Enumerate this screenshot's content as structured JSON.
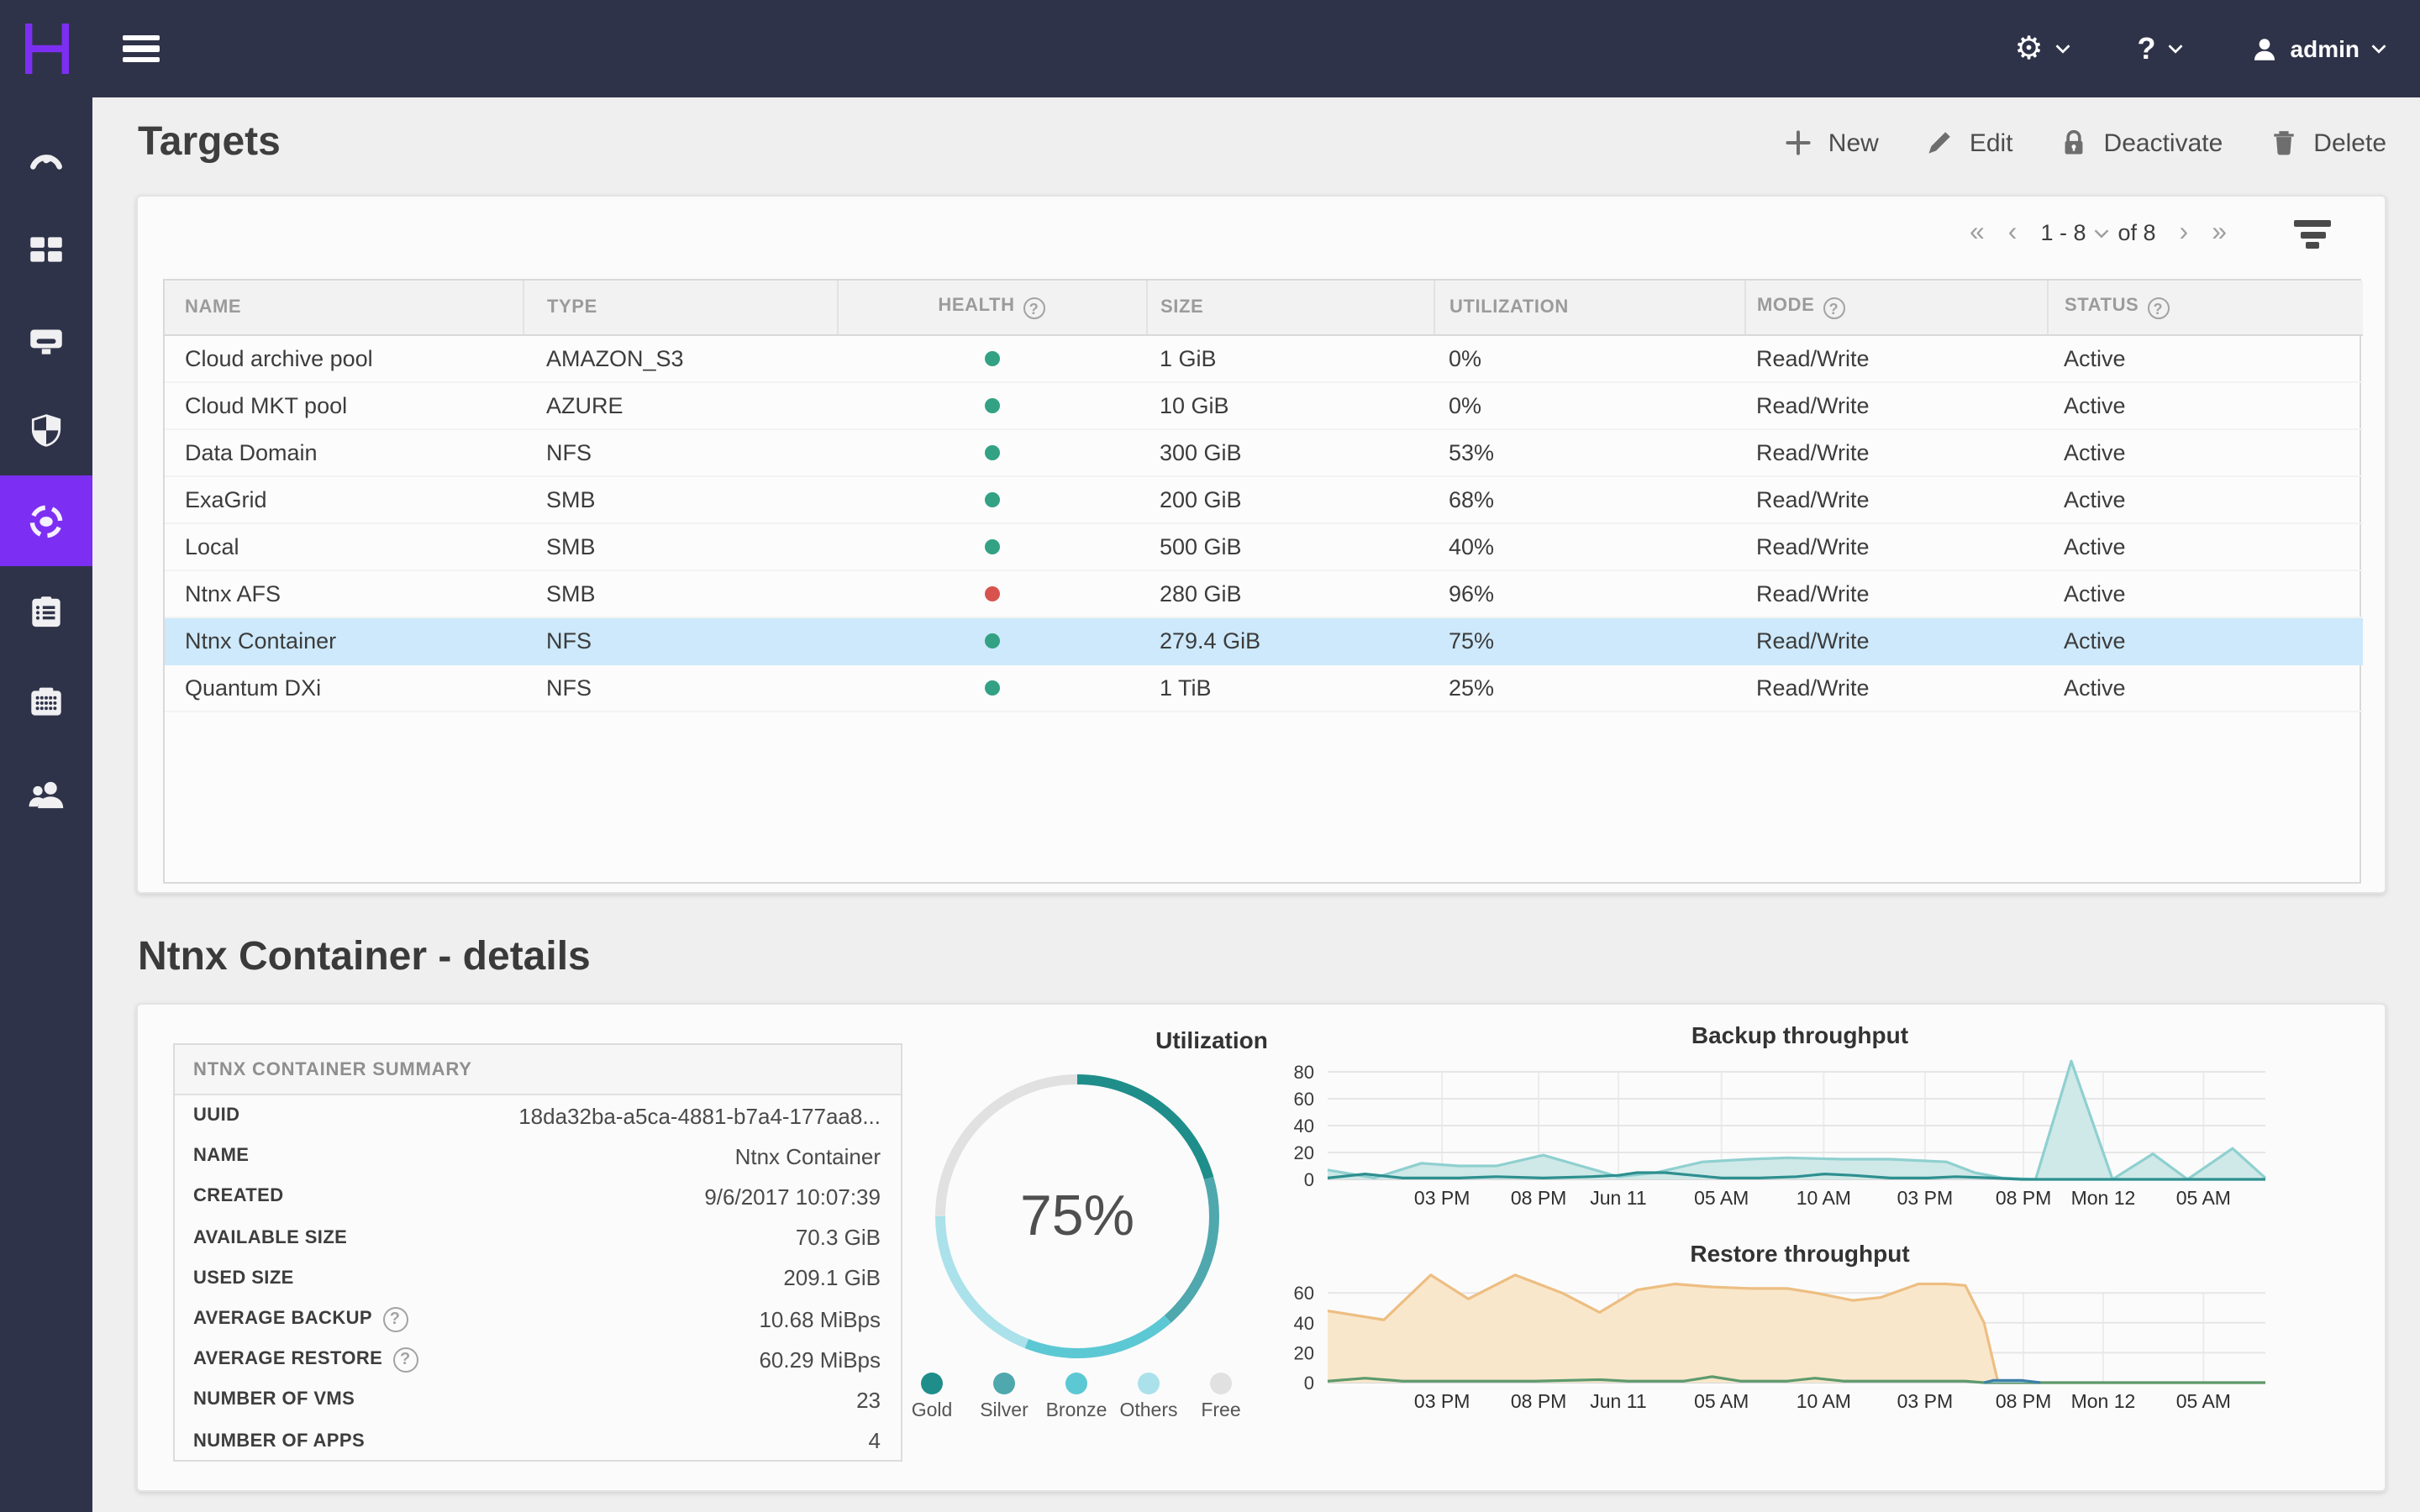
{
  "theme": {
    "topbar_bg": "#2f3349",
    "sidebar_bg": "#2f3349",
    "accent": "#7c2ff2",
    "page_bg": "#efeff0",
    "card_bg": "#fbfbfc",
    "selected_row_bg": "#cde9fb",
    "header_text": "#9b9b9b",
    "text_dark": "#3c3c3c",
    "health_ok": "#33a184",
    "health_error": "#d8534e"
  },
  "topbar": {
    "user_label": "admin"
  },
  "sidebar": {
    "items": [
      {
        "name": "dashboard",
        "icon": "gauge-icon",
        "active": false
      },
      {
        "name": "applications",
        "icon": "grid-icon",
        "active": false
      },
      {
        "name": "virtual-machines",
        "icon": "vm-icon",
        "active": false
      },
      {
        "name": "policies",
        "icon": "shield-icon",
        "active": false
      },
      {
        "name": "targets",
        "icon": "target-icon",
        "active": true
      },
      {
        "name": "reports",
        "icon": "clipboard-icon",
        "active": false
      },
      {
        "name": "events",
        "icon": "events-icon",
        "active": false
      },
      {
        "name": "administration",
        "icon": "users-icon",
        "active": false
      }
    ]
  },
  "page": {
    "title": "Targets",
    "details_title": "Ntnx Container - details"
  },
  "toolbar": {
    "buttons": [
      {
        "label": "New",
        "icon": "plus-icon"
      },
      {
        "label": "Edit",
        "icon": "pencil-icon"
      },
      {
        "label": "Deactivate",
        "icon": "lock-icon"
      },
      {
        "label": "Delete",
        "icon": "trash-icon"
      }
    ]
  },
  "pagination": {
    "first": "«",
    "prev": "‹",
    "range": "1 - 8",
    "of": "of 8",
    "next": "›",
    "last": "»"
  },
  "table": {
    "columns": [
      {
        "key": "name",
        "label": "NAME"
      },
      {
        "key": "type",
        "label": "TYPE"
      },
      {
        "key": "health",
        "label": "HEALTH",
        "help": true
      },
      {
        "key": "size",
        "label": "SIZE"
      },
      {
        "key": "utilization",
        "label": "UTILIZATION"
      },
      {
        "key": "mode",
        "label": "MODE",
        "help": true
      },
      {
        "key": "status",
        "label": "STATUS",
        "help": true
      }
    ],
    "rows": [
      {
        "name": "Cloud archive pool",
        "type": "AMAZON_S3",
        "health": "ok",
        "size": "1 GiB",
        "utilization": "0%",
        "mode": "Read/Write",
        "status": "Active",
        "selected": false
      },
      {
        "name": "Cloud MKT pool",
        "type": "AZURE",
        "health": "ok",
        "size": "10 GiB",
        "utilization": "0%",
        "mode": "Read/Write",
        "status": "Active",
        "selected": false
      },
      {
        "name": "Data Domain",
        "type": "NFS",
        "health": "ok",
        "size": "300 GiB",
        "utilization": "53%",
        "mode": "Read/Write",
        "status": "Active",
        "selected": false
      },
      {
        "name": "ExaGrid",
        "type": "SMB",
        "health": "ok",
        "size": "200 GiB",
        "utilization": "68%",
        "mode": "Read/Write",
        "status": "Active",
        "selected": false
      },
      {
        "name": "Local",
        "type": "SMB",
        "health": "ok",
        "size": "500 GiB",
        "utilization": "40%",
        "mode": "Read/Write",
        "status": "Active",
        "selected": false
      },
      {
        "name": "Ntnx AFS",
        "type": "SMB",
        "health": "error",
        "size": "280 GiB",
        "utilization": "96%",
        "mode": "Read/Write",
        "status": "Active",
        "selected": false
      },
      {
        "name": "Ntnx Container",
        "type": "NFS",
        "health": "ok",
        "size": "279.4 GiB",
        "utilization": "75%",
        "mode": "Read/Write",
        "status": "Active",
        "selected": true
      },
      {
        "name": "Quantum DXi",
        "type": "NFS",
        "health": "ok",
        "size": "1 TiB",
        "utilization": "25%",
        "mode": "Read/Write",
        "status": "Active",
        "selected": false
      }
    ]
  },
  "summary": {
    "title": "NTNX CONTAINER SUMMARY",
    "rows": [
      {
        "label": "UUID",
        "value": "18da32ba-a5ca-4881-b7a4-177aa8..."
      },
      {
        "label": "NAME",
        "value": "Ntnx Container"
      },
      {
        "label": "CREATED",
        "value": "9/6/2017 10:07:39"
      },
      {
        "label": "AVAILABLE SIZE",
        "value": "70.3 GiB"
      },
      {
        "label": "USED SIZE",
        "value": "209.1 GiB"
      },
      {
        "label": "AVERAGE BACKUP",
        "value": "10.68 MiBps",
        "help": true
      },
      {
        "label": "AVERAGE RESTORE",
        "value": "60.29 MiBps",
        "help": true
      },
      {
        "label": "NUMBER OF VMS",
        "value": "23"
      },
      {
        "label": "NUMBER OF APPS",
        "value": "4"
      }
    ]
  },
  "chart_data": [
    {
      "type": "pie",
      "id": "utilization",
      "title": "Utilization",
      "center_label": "75%",
      "slices": [
        {
          "label": "Gold",
          "value": 20.5,
          "color": "#1f8e8a"
        },
        {
          "label": "Silver",
          "value": 18,
          "color": "#4fa8ad"
        },
        {
          "label": "Bronze",
          "value": 17.5,
          "color": "#5cc8d4"
        },
        {
          "label": "Others",
          "value": 19,
          "color": "#abe1ea"
        },
        {
          "label": "Free",
          "value": 25,
          "color": "#e1e1e2"
        }
      ]
    },
    {
      "type": "area",
      "id": "backup",
      "title": "Backup throughput",
      "x_ticks": [
        "03 PM",
        "08 PM",
        "Jun 11",
        "05 AM",
        "10 AM",
        "03 PM",
        "08 PM",
        "Mon 12",
        "05 AM"
      ],
      "x_tick_fractions": [
        12.2,
        22.5,
        31,
        42,
        52.9,
        63.7,
        74.2,
        82.7,
        93.4
      ],
      "y_ticks": [
        0,
        20,
        40,
        60,
        80
      ],
      "ylim": [
        0,
        90
      ],
      "series": [
        {
          "name": "throughput",
          "stroke": "#8fd0cf",
          "fill": "#cfe9e8",
          "points": [
            [
              0,
              7
            ],
            [
              5,
              1
            ],
            [
              10,
              12
            ],
            [
              14,
              10
            ],
            [
              18,
              10
            ],
            [
              23,
              18
            ],
            [
              27,
              10
            ],
            [
              31,
              2
            ],
            [
              35,
              5
            ],
            [
              40,
              13
            ],
            [
              45,
              15
            ],
            [
              49,
              16
            ],
            [
              55,
              15
            ],
            [
              60,
              15
            ],
            [
              63,
              14
            ],
            [
              66,
              13
            ],
            [
              69,
              5
            ],
            [
              72,
              1
            ],
            [
              75.5,
              0
            ],
            [
              79.3,
              88
            ],
            [
              83.7,
              0
            ],
            [
              88,
              19
            ],
            [
              91.7,
              0
            ],
            [
              96.5,
              23
            ],
            [
              100,
              1
            ]
          ]
        },
        {
          "name": "secondary",
          "stroke": "#2e8f8f",
          "fill": null,
          "points": [
            [
              0,
              1
            ],
            [
              4,
              4
            ],
            [
              8,
              1
            ],
            [
              14,
              1
            ],
            [
              18,
              2
            ],
            [
              23,
              1
            ],
            [
              28,
              2
            ],
            [
              31,
              3
            ],
            [
              33,
              5
            ],
            [
              36,
              5
            ],
            [
              39,
              3
            ],
            [
              42,
              1
            ],
            [
              46,
              1
            ],
            [
              50,
              2
            ],
            [
              53,
              4
            ],
            [
              56,
              3
            ],
            [
              60,
              1
            ],
            [
              64,
              1
            ],
            [
              67,
              2
            ],
            [
              71,
              1
            ],
            [
              74,
              0
            ],
            [
              100,
              0
            ]
          ]
        }
      ]
    },
    {
      "type": "area",
      "id": "restore",
      "title": "Restore throughput",
      "x_ticks": [
        "03 PM",
        "08 PM",
        "Jun 11",
        "05 AM",
        "10 AM",
        "03 PM",
        "08 PM",
        "Mon 12",
        "05 AM"
      ],
      "x_tick_fractions": [
        12.2,
        22.5,
        31,
        42,
        52.9,
        63.7,
        74.2,
        82.7,
        93.4
      ],
      "y_ticks": [
        0,
        20,
        40,
        60
      ],
      "ylim": [
        0,
        74
      ],
      "series": [
        {
          "name": "throughput",
          "stroke": "#edbe82",
          "fill": "#f9e7cb",
          "points": [
            [
              0,
              48
            ],
            [
              6,
              42
            ],
            [
              11,
              72
            ],
            [
              15,
              56
            ],
            [
              20,
              72
            ],
            [
              25,
              60
            ],
            [
              29,
              47
            ],
            [
              33,
              62
            ],
            [
              37,
              66
            ],
            [
              41,
              64
            ],
            [
              45,
              63
            ],
            [
              49,
              63
            ],
            [
              52,
              60
            ],
            [
              56,
              55
            ],
            [
              59,
              57
            ],
            [
              63,
              66
            ],
            [
              66,
              66
            ],
            [
              68,
              65
            ],
            [
              70,
              40
            ],
            [
              71.5,
              0
            ],
            [
              100,
              0
            ]
          ]
        },
        {
          "name": "secondary",
          "stroke": "#5d9a6e",
          "fill": null,
          "points": [
            [
              0,
              1
            ],
            [
              4,
              3
            ],
            [
              8,
              1
            ],
            [
              15,
              1
            ],
            [
              22,
              1
            ],
            [
              29,
              2
            ],
            [
              32,
              1
            ],
            [
              38,
              1
            ],
            [
              41,
              4
            ],
            [
              44,
              1
            ],
            [
              49,
              1
            ],
            [
              52,
              3
            ],
            [
              55,
              1
            ],
            [
              60,
              1
            ],
            [
              65,
              1
            ],
            [
              68,
              1
            ],
            [
              70,
              0
            ],
            [
              100,
              0
            ]
          ]
        },
        {
          "name": "tail",
          "stroke": "#3a7fa8",
          "fill": "#9cc3d6",
          "points": [
            [
              70,
              0
            ],
            [
              71,
              1.5
            ],
            [
              74,
              1.5
            ],
            [
              76,
              0
            ]
          ]
        }
      ]
    }
  ]
}
